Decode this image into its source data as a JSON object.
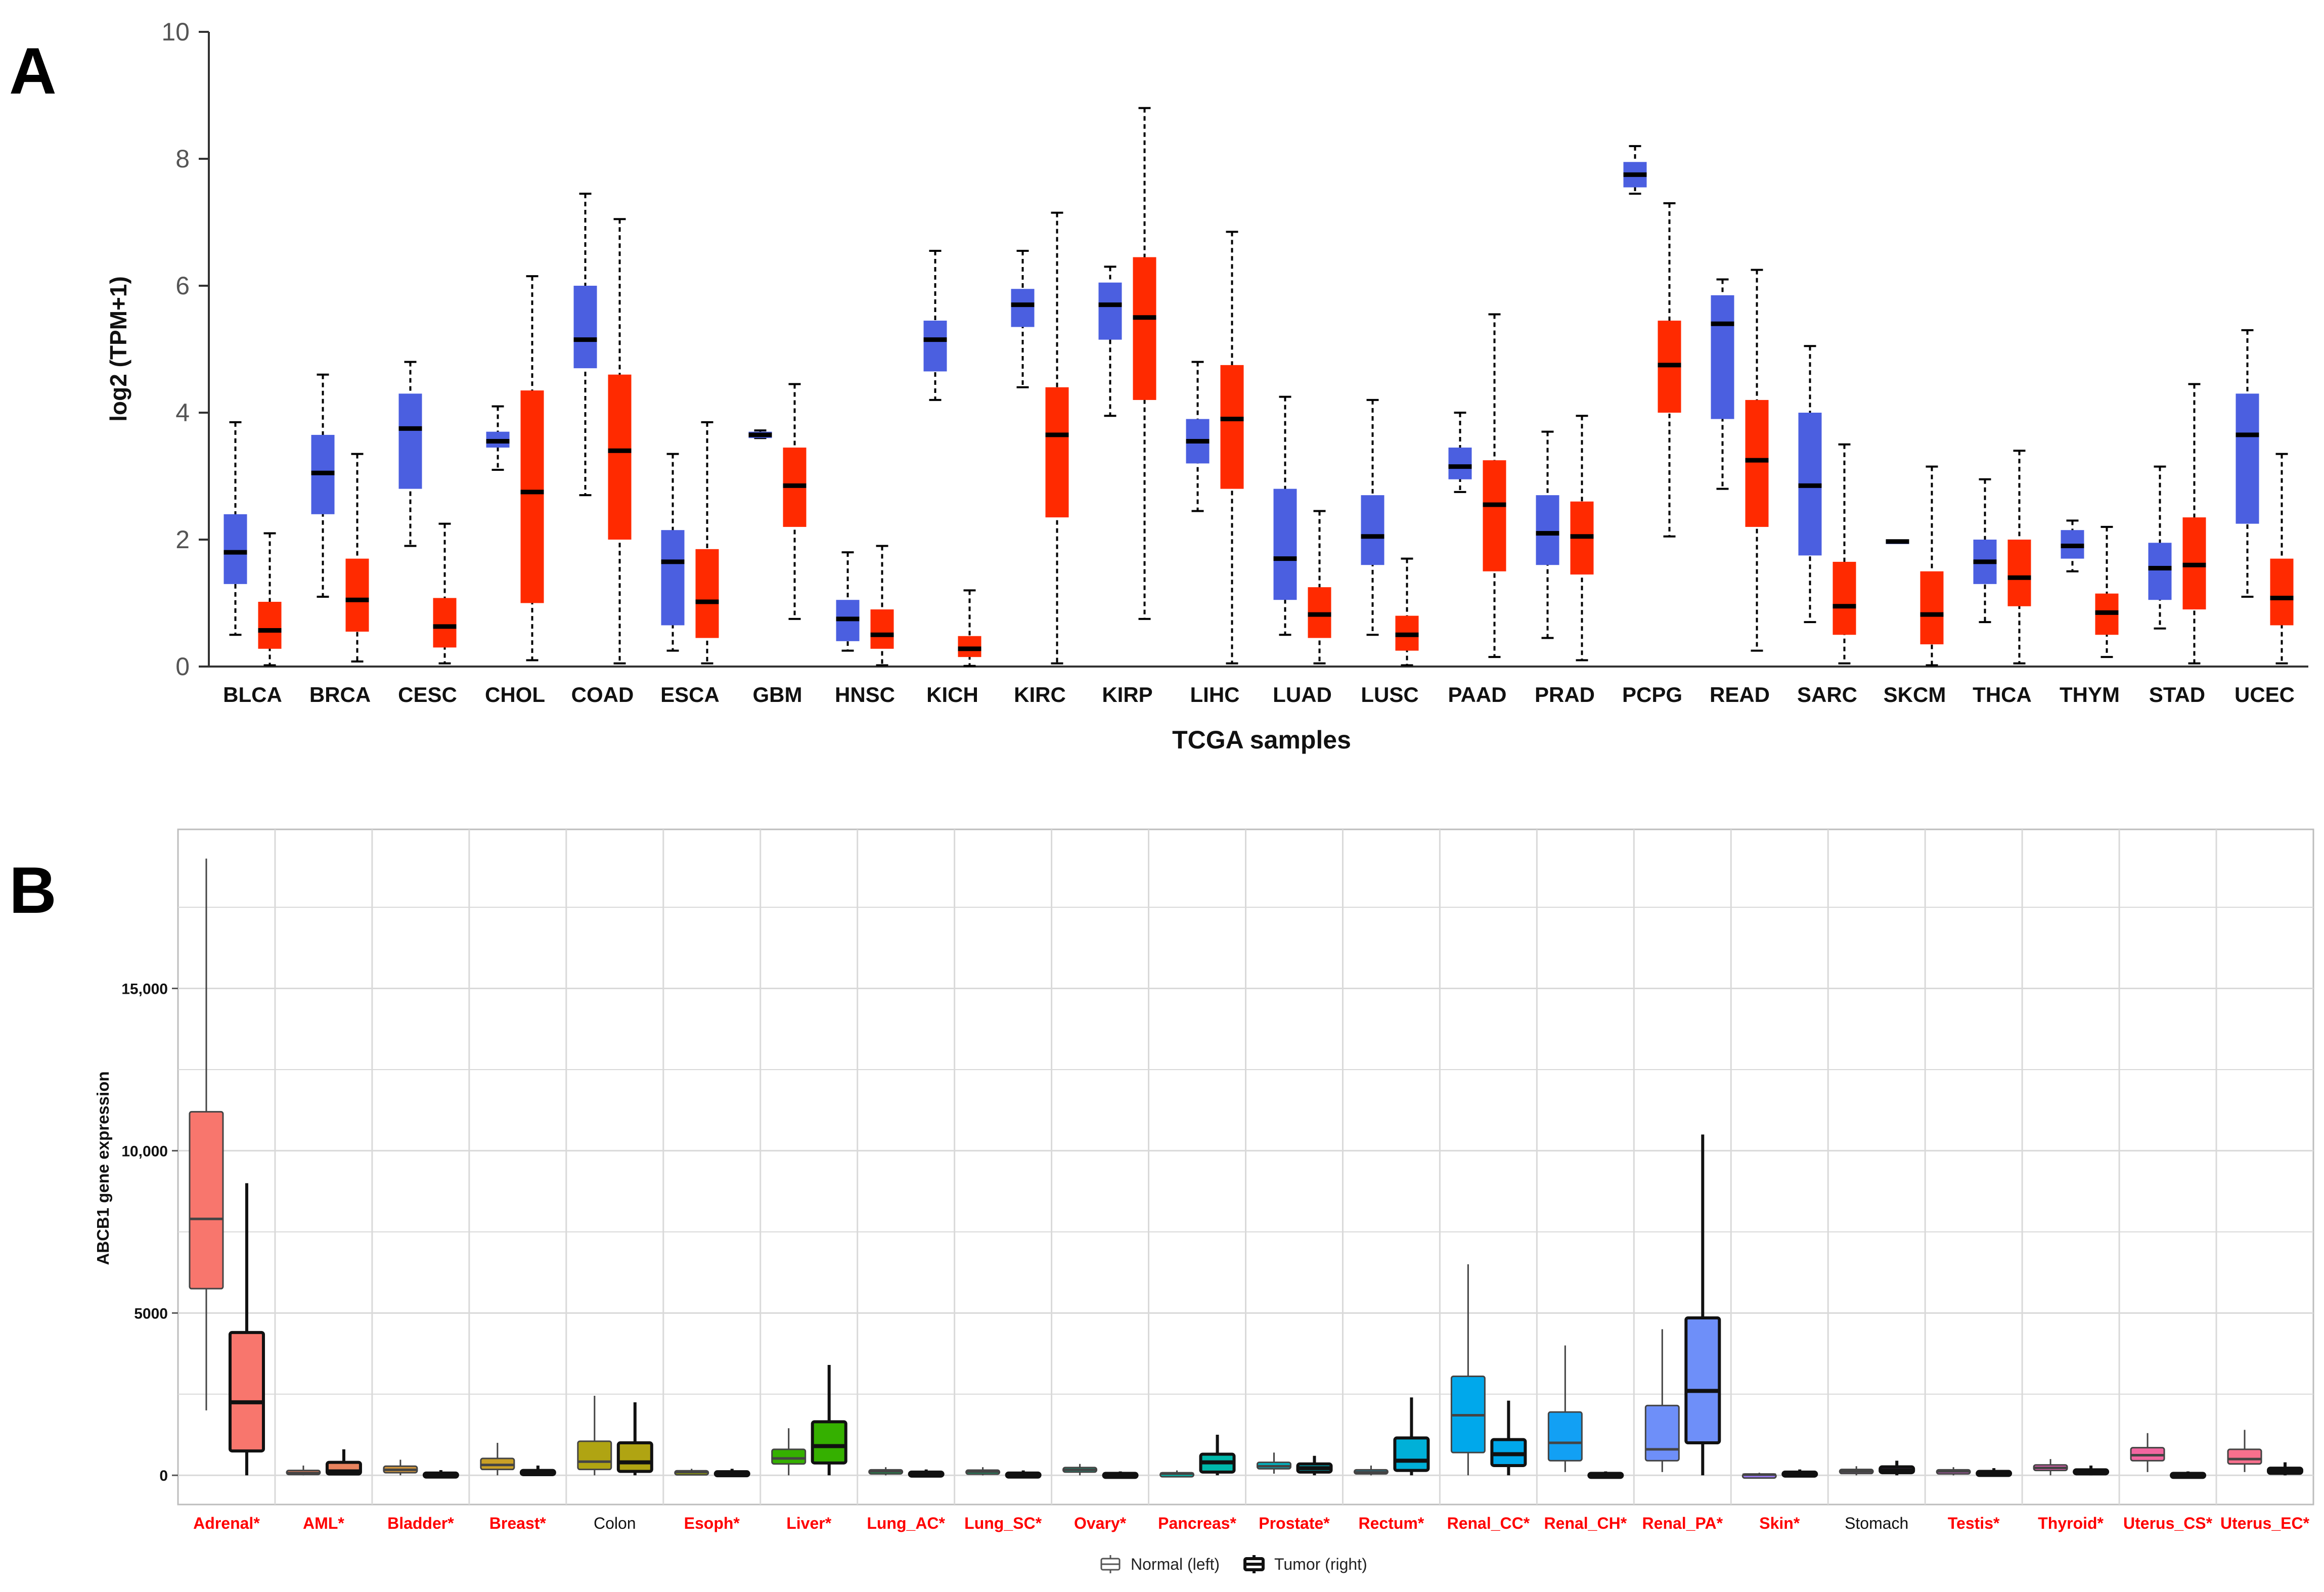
{
  "chart_data": [
    {
      "panel_label": "A",
      "type": "boxplot",
      "title": "",
      "xlabel": "TCGA samples",
      "ylabel": "log2 (TPM+1)",
      "ylim": [
        0,
        10
      ],
      "yticks": [
        "0",
        "2",
        "4",
        "6",
        "8",
        "10"
      ],
      "colors": {
        "normal": "#4b5fe0",
        "tumor": "#ff2a00",
        "median": "#000000",
        "whisker": "#000000"
      },
      "categories": [
        {
          "name": "BLCA",
          "normal": {
            "min": 0.5,
            "q1": 1.3,
            "median": 1.8,
            "q3": 2.4,
            "max": 3.85
          },
          "tumor": {
            "min": 0.02,
            "q1": 0.28,
            "median": 0.57,
            "q3": 1.02,
            "max": 2.1
          }
        },
        {
          "name": "BRCA",
          "normal": {
            "min": 1.1,
            "q1": 2.4,
            "median": 3.05,
            "q3": 3.65,
            "max": 4.6
          },
          "tumor": {
            "min": 0.08,
            "q1": 0.55,
            "median": 1.05,
            "q3": 1.7,
            "max": 3.35
          }
        },
        {
          "name": "CESC",
          "normal": {
            "min": 1.9,
            "q1": 2.8,
            "median": 3.75,
            "q3": 4.3,
            "max": 4.8
          },
          "tumor": {
            "min": 0.05,
            "q1": 0.3,
            "median": 0.63,
            "q3": 1.08,
            "max": 2.25
          }
        },
        {
          "name": "CHOL",
          "normal": {
            "min": 3.1,
            "q1": 3.45,
            "median": 3.55,
            "q3": 3.7,
            "max": 4.1
          },
          "tumor": {
            "min": 0.1,
            "q1": 1.0,
            "median": 2.75,
            "q3": 4.35,
            "max": 6.15
          }
        },
        {
          "name": "COAD",
          "normal": {
            "min": 2.7,
            "q1": 4.7,
            "median": 5.15,
            "q3": 6.0,
            "max": 7.45
          },
          "tumor": {
            "min": 0.05,
            "q1": 2.0,
            "median": 3.4,
            "q3": 4.6,
            "max": 7.05
          }
        },
        {
          "name": "ESCA",
          "normal": {
            "min": 0.25,
            "q1": 0.65,
            "median": 1.65,
            "q3": 2.15,
            "max": 3.35
          },
          "tumor": {
            "min": 0.05,
            "q1": 0.45,
            "median": 1.02,
            "q3": 1.85,
            "max": 3.85
          }
        },
        {
          "name": "GBM",
          "normal": {
            "min": 3.6,
            "q1": 3.6,
            "median": 3.65,
            "q3": 3.7,
            "max": 3.72
          },
          "tumor": {
            "min": 0.75,
            "q1": 2.2,
            "median": 2.85,
            "q3": 3.45,
            "max": 4.45
          }
        },
        {
          "name": "HNSC",
          "normal": {
            "min": 0.25,
            "q1": 0.4,
            "median": 0.75,
            "q3": 1.05,
            "max": 1.8
          },
          "tumor": {
            "min": 0.02,
            "q1": 0.28,
            "median": 0.5,
            "q3": 0.9,
            "max": 1.9
          }
        },
        {
          "name": "KICH",
          "normal": {
            "min": 4.2,
            "q1": 4.65,
            "median": 5.15,
            "q3": 5.45,
            "max": 6.55
          },
          "tumor": {
            "min": 0.01,
            "q1": 0.15,
            "median": 0.28,
            "q3": 0.48,
            "max": 1.2
          }
        },
        {
          "name": "KIRC",
          "normal": {
            "min": 4.4,
            "q1": 5.35,
            "median": 5.7,
            "q3": 5.95,
            "max": 6.55
          },
          "tumor": {
            "min": 0.05,
            "q1": 2.35,
            "median": 3.65,
            "q3": 4.4,
            "max": 7.15
          }
        },
        {
          "name": "KIRP",
          "normal": {
            "min": 3.95,
            "q1": 5.15,
            "median": 5.7,
            "q3": 6.05,
            "max": 6.3
          },
          "tumor": {
            "min": 0.75,
            "q1": 4.2,
            "median": 5.5,
            "q3": 6.45,
            "max": 8.8
          }
        },
        {
          "name": "LIHC",
          "normal": {
            "min": 2.45,
            "q1": 3.2,
            "median": 3.55,
            "q3": 3.9,
            "max": 4.8
          },
          "tumor": {
            "min": 0.05,
            "q1": 2.8,
            "median": 3.9,
            "q3": 4.75,
            "max": 6.85
          }
        },
        {
          "name": "LUAD",
          "normal": {
            "min": 0.5,
            "q1": 1.05,
            "median": 1.7,
            "q3": 2.8,
            "max": 4.25
          },
          "tumor": {
            "min": 0.05,
            "q1": 0.45,
            "median": 0.82,
            "q3": 1.25,
            "max": 2.45
          }
        },
        {
          "name": "LUSC",
          "normal": {
            "min": 0.5,
            "q1": 1.6,
            "median": 2.05,
            "q3": 2.7,
            "max": 4.2
          },
          "tumor": {
            "min": 0.02,
            "q1": 0.25,
            "median": 0.5,
            "q3": 0.8,
            "max": 1.7
          }
        },
        {
          "name": "PAAD",
          "normal": {
            "min": 2.75,
            "q1": 2.95,
            "median": 3.15,
            "q3": 3.45,
            "max": 4.0
          },
          "tumor": {
            "min": 0.15,
            "q1": 1.5,
            "median": 2.55,
            "q3": 3.25,
            "max": 5.55
          }
        },
        {
          "name": "PRAD",
          "normal": {
            "min": 0.45,
            "q1": 1.6,
            "median": 2.1,
            "q3": 2.7,
            "max": 3.7
          },
          "tumor": {
            "min": 0.1,
            "q1": 1.45,
            "median": 2.05,
            "q3": 2.6,
            "max": 3.95
          }
        },
        {
          "name": "PCPG",
          "normal": {
            "min": 7.45,
            "q1": 7.55,
            "median": 7.75,
            "q3": 7.95,
            "max": 8.2
          },
          "tumor": {
            "min": 2.05,
            "q1": 4.0,
            "median": 4.75,
            "q3": 5.45,
            "max": 7.3
          }
        },
        {
          "name": "READ",
          "normal": {
            "min": 2.8,
            "q1": 3.9,
            "median": 5.4,
            "q3": 5.85,
            "max": 6.1
          },
          "tumor": {
            "min": 0.25,
            "q1": 2.2,
            "median": 3.25,
            "q3": 4.2,
            "max": 6.25
          }
        },
        {
          "name": "SARC",
          "normal": {
            "min": 0.7,
            "q1": 1.75,
            "median": 2.85,
            "q3": 4.0,
            "max": 5.05
          },
          "tumor": {
            "min": 0.05,
            "q1": 0.5,
            "median": 0.95,
            "q3": 1.65,
            "max": 3.5
          }
        },
        {
          "name": "SKCM",
          "normal": {
            "min": 1.97,
            "q1": 1.97,
            "median": 1.97,
            "q3": 1.97,
            "max": 1.97
          },
          "tumor": {
            "min": 0.02,
            "q1": 0.35,
            "median": 0.82,
            "q3": 1.5,
            "max": 3.15
          }
        },
        {
          "name": "THCA",
          "normal": {
            "min": 0.7,
            "q1": 1.3,
            "median": 1.65,
            "q3": 2.0,
            "max": 2.95
          },
          "tumor": {
            "min": 0.05,
            "q1": 0.95,
            "median": 1.4,
            "q3": 2.0,
            "max": 3.4
          }
        },
        {
          "name": "THYM",
          "normal": {
            "min": 1.5,
            "q1": 1.7,
            "median": 1.9,
            "q3": 2.15,
            "max": 2.3
          },
          "tumor": {
            "min": 0.15,
            "q1": 0.5,
            "median": 0.85,
            "q3": 1.15,
            "max": 2.2
          }
        },
        {
          "name": "STAD",
          "normal": {
            "min": 0.6,
            "q1": 1.05,
            "median": 1.55,
            "q3": 1.95,
            "max": 3.15
          },
          "tumor": {
            "min": 0.05,
            "q1": 0.9,
            "median": 1.6,
            "q3": 2.35,
            "max": 4.45
          }
        },
        {
          "name": "UCEC",
          "normal": {
            "min": 1.1,
            "q1": 2.25,
            "median": 3.65,
            "q3": 4.3,
            "max": 5.3
          },
          "tumor": {
            "min": 0.05,
            "q1": 0.65,
            "median": 1.08,
            "q3": 1.7,
            "max": 3.35
          }
        }
      ]
    },
    {
      "panel_label": "B",
      "type": "boxplot",
      "title": "",
      "xlabel": "",
      "ylabel": "ABCB1 gene expression",
      "ylim": [
        -900,
        19900
      ],
      "yticks": [
        {
          "value": 0,
          "label": "0"
        },
        {
          "value": 5000,
          "label": "5000"
        },
        {
          "value": 10000,
          "label": "10,000"
        },
        {
          "value": 15000,
          "label": "15,000"
        }
      ],
      "legend": {
        "normal_label": "Normal (left)",
        "tumor_label": "Tumor (right)",
        "position": "bottom"
      },
      "highlight_color": "#ff0000",
      "plain_color": "#111111",
      "categories": [
        {
          "name": "Adrenal*",
          "significant": true,
          "color": "#f8766d",
          "normal": {
            "min": 2000,
            "q1": 5750,
            "median": 7900,
            "q3": 11200,
            "max": 19000
          },
          "tumor": {
            "min": 0,
            "q1": 750,
            "median": 2250,
            "q3": 4400,
            "max": 9000
          }
        },
        {
          "name": "AML*",
          "significant": true,
          "color": "#e8835e",
          "normal": {
            "min": 0,
            "q1": 30,
            "median": 70,
            "q3": 150,
            "max": 300
          },
          "tumor": {
            "min": 0,
            "q1": 40,
            "median": 120,
            "q3": 400,
            "max": 800
          }
        },
        {
          "name": "Bladder*",
          "significant": true,
          "color": "#d89a3e",
          "normal": {
            "min": 0,
            "q1": 80,
            "median": 170,
            "q3": 280,
            "max": 480
          },
          "tumor": {
            "min": 0,
            "q1": 10,
            "median": 30,
            "q3": 70,
            "max": 160
          }
        },
        {
          "name": "Breast*",
          "significant": true,
          "color": "#c9a026",
          "normal": {
            "min": 0,
            "q1": 180,
            "median": 320,
            "q3": 520,
            "max": 1000
          },
          "tumor": {
            "min": 0,
            "q1": 20,
            "median": 60,
            "q3": 150,
            "max": 300
          }
        },
        {
          "name": "Colon",
          "significant": false,
          "color": "#b0a412",
          "normal": {
            "min": 0,
            "q1": 180,
            "median": 420,
            "q3": 1050,
            "max": 2450
          },
          "tumor": {
            "min": 0,
            "q1": 120,
            "median": 400,
            "q3": 1000,
            "max": 2250
          }
        },
        {
          "name": "Esoph*",
          "significant": true,
          "color": "#9aa800",
          "normal": {
            "min": 0,
            "q1": 60,
            "median": 100,
            "q3": 140,
            "max": 200
          },
          "tumor": {
            "min": 0,
            "q1": 20,
            "median": 50,
            "q3": 110,
            "max": 200
          }
        },
        {
          "name": "Liver*",
          "significant": true,
          "color": "#35b000",
          "normal": {
            "min": 0,
            "q1": 350,
            "median": 520,
            "q3": 800,
            "max": 1450
          },
          "tumor": {
            "min": 0,
            "q1": 380,
            "median": 900,
            "q3": 1650,
            "max": 3400
          }
        },
        {
          "name": "Lung_AC*",
          "significant": true,
          "color": "#00b34a",
          "normal": {
            "min": 0,
            "q1": 70,
            "median": 120,
            "q3": 170,
            "max": 250
          },
          "tumor": {
            "min": 0,
            "q1": 20,
            "median": 50,
            "q3": 100,
            "max": 180
          }
        },
        {
          "name": "Lung_SC*",
          "significant": true,
          "color": "#00b670",
          "normal": {
            "min": 0,
            "q1": 60,
            "median": 110,
            "q3": 160,
            "max": 250
          },
          "tumor": {
            "min": 0,
            "q1": 10,
            "median": 30,
            "q3": 70,
            "max": 150
          }
        },
        {
          "name": "Ovary*",
          "significant": true,
          "color": "#00b88e",
          "normal": {
            "min": 0,
            "q1": 100,
            "median": 170,
            "q3": 240,
            "max": 350
          },
          "tumor": {
            "min": 0,
            "q1": 10,
            "median": 30,
            "q3": 60,
            "max": 120
          }
        },
        {
          "name": "Pancreas*",
          "significant": true,
          "color": "#00b8aa",
          "normal": {
            "min": 0,
            "q1": 30,
            "median": 50,
            "q3": 80,
            "max": 150
          },
          "tumor": {
            "min": 0,
            "q1": 100,
            "median": 400,
            "q3": 650,
            "max": 1250
          }
        },
        {
          "name": "Prostate*",
          "significant": true,
          "color": "#00b5c2",
          "normal": {
            "min": 50,
            "q1": 200,
            "median": 280,
            "q3": 400,
            "max": 700
          },
          "tumor": {
            "min": 0,
            "q1": 100,
            "median": 220,
            "q3": 350,
            "max": 600
          }
        },
        {
          "name": "Rectum*",
          "significant": true,
          "color": "#00b0d8",
          "normal": {
            "min": 0,
            "q1": 60,
            "median": 100,
            "q3": 170,
            "max": 300
          },
          "tumor": {
            "min": 0,
            "q1": 150,
            "median": 450,
            "q3": 1150,
            "max": 2400
          }
        },
        {
          "name": "Renal_CC*",
          "significant": true,
          "color": "#00a8eb",
          "normal": {
            "min": 0,
            "q1": 700,
            "median": 1850,
            "q3": 3050,
            "max": 6500
          },
          "tumor": {
            "min": 0,
            "q1": 300,
            "median": 650,
            "q3": 1100,
            "max": 2300
          }
        },
        {
          "name": "Renal_CH*",
          "significant": true,
          "color": "#12a0f4",
          "normal": {
            "min": 100,
            "q1": 450,
            "median": 1000,
            "q3": 1950,
            "max": 4000
          },
          "tumor": {
            "min": 0,
            "q1": 5,
            "median": 20,
            "q3": 60,
            "max": 120
          }
        },
        {
          "name": "Renal_PA*",
          "significant": true,
          "color": "#6e8ff9",
          "normal": {
            "min": 100,
            "q1": 450,
            "median": 800,
            "q3": 2150,
            "max": 4500
          },
          "tumor": {
            "min": 0,
            "q1": 1000,
            "median": 2600,
            "q3": 4850,
            "max": 10500
          }
        },
        {
          "name": "Skin*",
          "significant": true,
          "color": "#9f7dfb",
          "normal": {
            "min": 0,
            "q1": 10,
            "median": 20,
            "q3": 40,
            "max": 80
          },
          "tumor": {
            "min": 0,
            "q1": 20,
            "median": 50,
            "q3": 100,
            "max": 180
          }
        },
        {
          "name": "Stomach",
          "significant": false,
          "color": "#c46df2",
          "normal": {
            "min": 0,
            "q1": 70,
            "median": 120,
            "q3": 180,
            "max": 280
          },
          "tumor": {
            "min": 0,
            "q1": 80,
            "median": 150,
            "q3": 260,
            "max": 450
          }
        },
        {
          "name": "Testis*",
          "significant": true,
          "color": "#de63d8",
          "normal": {
            "min": 0,
            "q1": 80,
            "median": 120,
            "q3": 170,
            "max": 250
          },
          "tumor": {
            "min": 0,
            "q1": 30,
            "median": 70,
            "q3": 120,
            "max": 220
          }
        },
        {
          "name": "Thyroid*",
          "significant": true,
          "color": "#ea61b7",
          "normal": {
            "min": 0,
            "q1": 150,
            "median": 230,
            "q3": 320,
            "max": 500
          },
          "tumor": {
            "min": 0,
            "q1": 50,
            "median": 100,
            "q3": 170,
            "max": 300
          }
        },
        {
          "name": "Uterus_CS*",
          "significant": true,
          "color": "#f266a0",
          "normal": {
            "min": 100,
            "q1": 450,
            "median": 620,
            "q3": 850,
            "max": 1300
          },
          "tumor": {
            "min": 0,
            "q1": 10,
            "median": 30,
            "q3": 60,
            "max": 120
          }
        },
        {
          "name": "Uterus_EC*",
          "significant": true,
          "color": "#f7708d",
          "normal": {
            "min": 100,
            "q1": 350,
            "median": 500,
            "q3": 800,
            "max": 1400
          },
          "tumor": {
            "min": 0,
            "q1": 60,
            "median": 120,
            "q3": 220,
            "max": 400
          }
        }
      ]
    }
  ]
}
